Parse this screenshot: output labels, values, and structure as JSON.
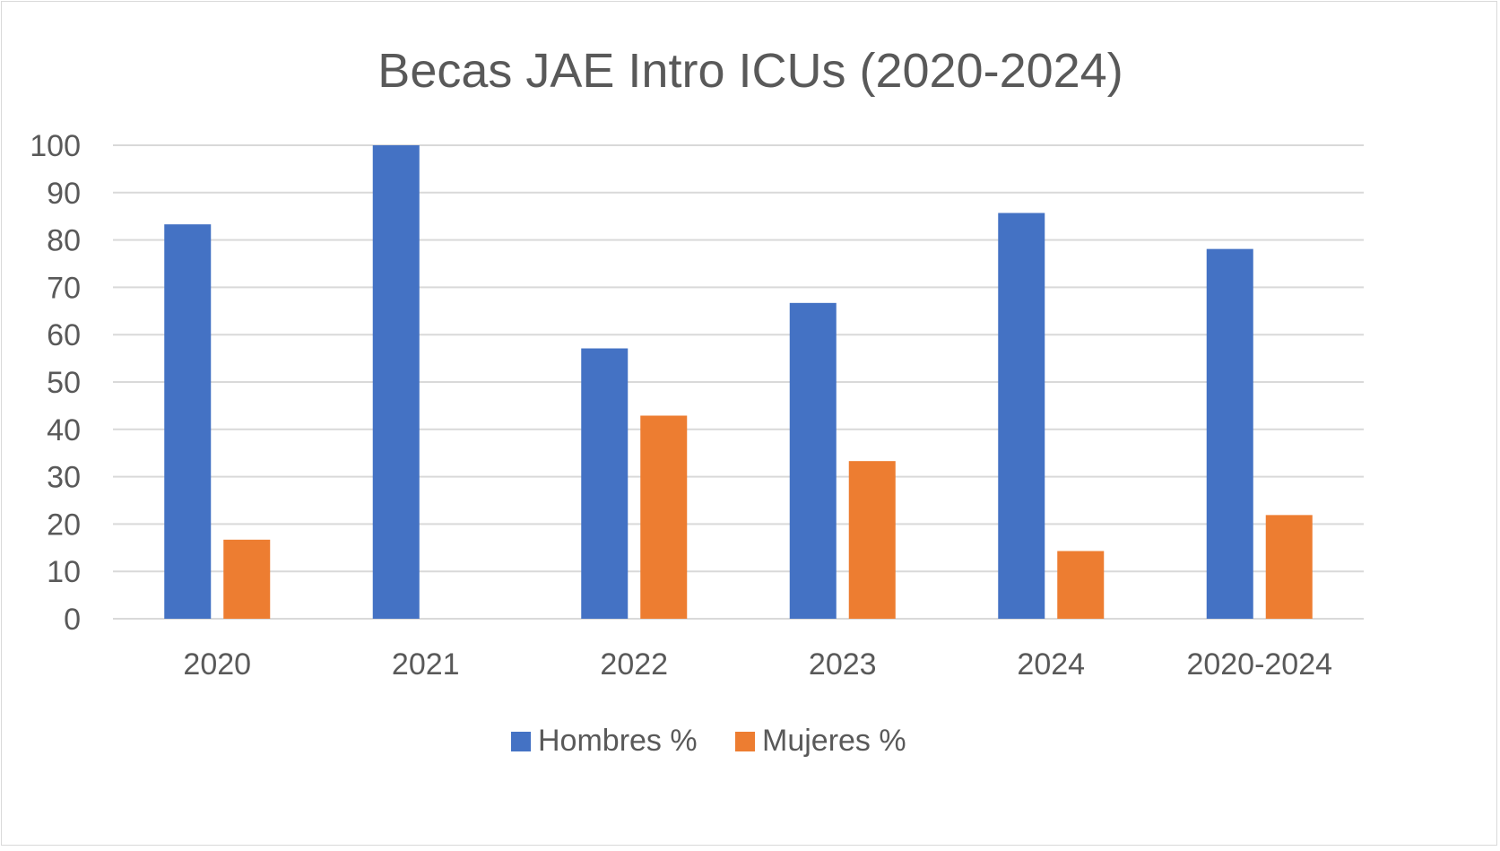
{
  "chart_data": {
    "type": "bar",
    "title": "Becas JAE Intro ICUs (2020-2024)",
    "xlabel": "",
    "ylabel": "",
    "categories": [
      "2020",
      "2021",
      "2022",
      "2023",
      "2024",
      "2020-2024"
    ],
    "series": [
      {
        "name": "Hombres %",
        "color": "#4472C4",
        "values": [
          83.3,
          100,
          57.1,
          66.7,
          85.7,
          78.1
        ]
      },
      {
        "name": "Mujeres %",
        "color": "#ED7D31",
        "values": [
          16.7,
          0,
          42.9,
          33.3,
          14.3,
          21.9
        ]
      }
    ],
    "ylim": [
      0,
      100
    ],
    "yticks": [
      "0",
      "10",
      "20",
      "30",
      "40",
      "50",
      "60",
      "70",
      "80",
      "90",
      "100"
    ],
    "grid": true,
    "legend": "bottom",
    "colors": {
      "gridline": "#d9d9d9",
      "text": "#595959"
    }
  }
}
